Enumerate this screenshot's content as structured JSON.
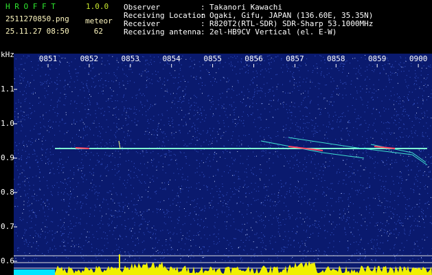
{
  "header": {
    "app": "H R O F F T",
    "version": "1.0.0",
    "filename": "2511270850.png",
    "datetime": "25.11.27 08:50",
    "meteor_label": "meteor",
    "meteor_count": "62",
    "separator": ":",
    "fields": [
      {
        "label": "Observer",
        "value": "Takanori Kawachi"
      },
      {
        "label": "Receiving Location",
        "value": "Ogaki, Gifu, JAPAN (136.60E, 35.35N)"
      },
      {
        "label": "Receiver",
        "value": "R820T2(RTL-SDR) SDR-Sharp 53.1000MHz"
      },
      {
        "label": "Receiving antenna",
        "value": "2el-HB9CV Vertical (el. E-W)"
      }
    ]
  },
  "spectrogram": {
    "y_unit": "kHz",
    "yticks": [
      "1.1",
      "1.0",
      "0.9",
      "0.8",
      "0.7",
      "0.6"
    ],
    "xticks": [
      "0851",
      "0852",
      "0853",
      "0854",
      "0855",
      "0856",
      "0857",
      "0858",
      "0859",
      "0900"
    ]
  }
}
